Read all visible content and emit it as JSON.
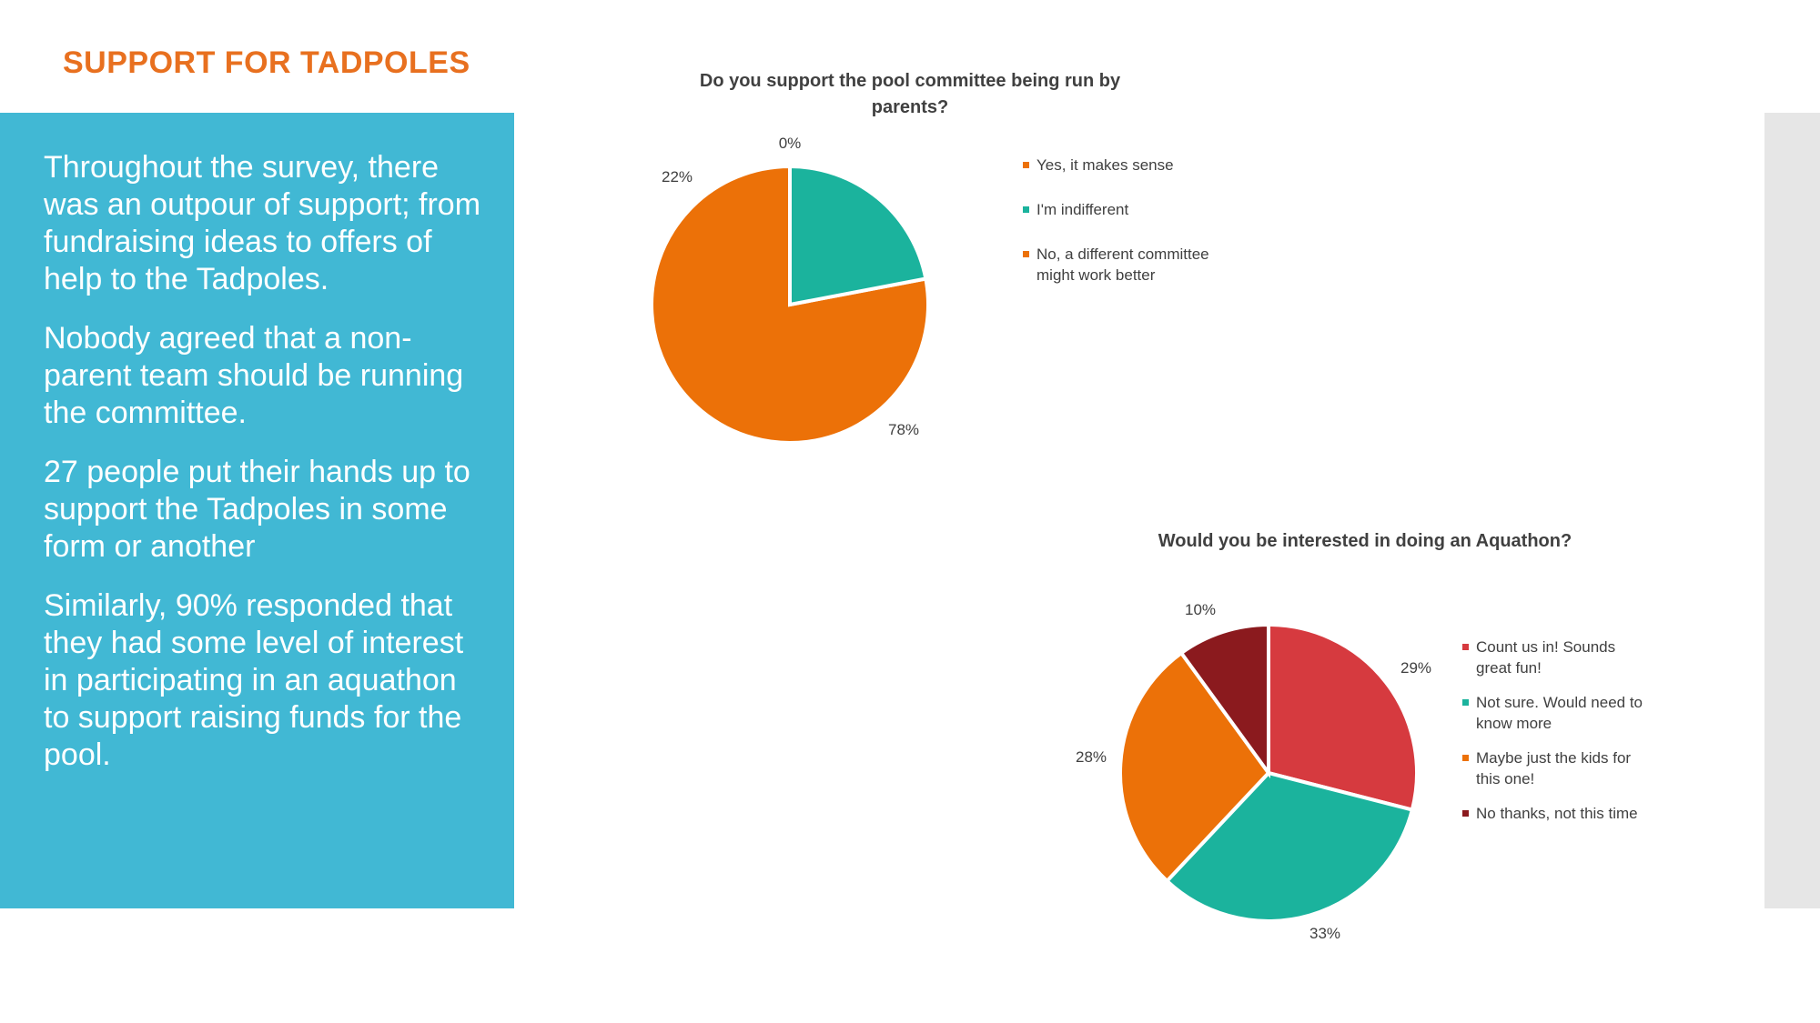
{
  "slide": {
    "title": "SUPPORT FOR TADPOLES",
    "paragraphs": [
      "Throughout the survey, there was an outpour of support; from fundraising ideas to offers of help to the Tadpoles.",
      "Nobody agreed that a non-parent team should be running the committee.",
      "27 people put their hands up to support the Tadpoles in some form or another",
      "Similarly, 90% responded that they had some level of interest in participating in an aquathon to support raising funds for the pool."
    ]
  },
  "colors": {
    "panel": "#41b8d4",
    "title": "#e8701f",
    "grey_strip": "#e6e6e6"
  },
  "chart_data": [
    {
      "type": "pie",
      "title": "Do you support the pool committee being run by parents?",
      "categories": [
        "Yes, it makes sense",
        "I'm indifferent",
        "No, a different committee might work better"
      ],
      "values": [
        78,
        22,
        0
      ],
      "labels": [
        "78%",
        "22%",
        "0%"
      ],
      "colors": [
        "#ec7108",
        "#1bb39d",
        "#ec7108"
      ],
      "legend": "right"
    },
    {
      "type": "pie",
      "title": "Would you be interested in doing an Aquathon?",
      "categories": [
        "Count us in! Sounds great fun!",
        "Not sure. Would need to know more",
        "Maybe just the kids for this one!",
        "No thanks, not this time"
      ],
      "values": [
        29,
        33,
        28,
        10
      ],
      "labels": [
        "29%",
        "33%",
        "28%",
        "10%"
      ],
      "colors": [
        "#d63a3f",
        "#1bb39d",
        "#ec7108",
        "#8b1a1e"
      ],
      "legend": "right"
    }
  ]
}
